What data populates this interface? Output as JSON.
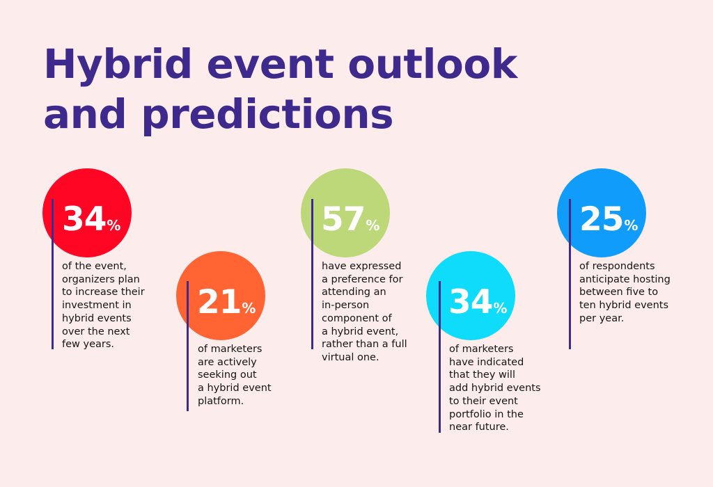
{
  "title": {
    "line1": "Hybrid event outlook",
    "line2": "and predictions"
  },
  "colors": {
    "background": "#fdecec",
    "title": "#3d2a8c",
    "divider": "#3d2a8c",
    "stat_1": "#fe0624",
    "stat_2": "#ff6432",
    "stat_3": "#bcd879",
    "stat_4": "#0edcfa",
    "stat_5": "#109cfa"
  },
  "stats": [
    {
      "value": "34",
      "unit": "%",
      "description": "of the event,\norganizers plan\nto increase their\ninvestment in\nhybrid events\nover the next\nfew years."
    },
    {
      "value": "21",
      "unit": "%",
      "description": "of marketers\nare actively\nseeking out\na hybrid event\nplatform."
    },
    {
      "value": "57",
      "unit": "%",
      "description": "have expressed\na preference for\nattending an\nin-person\ncomponent of\na hybrid event,\nrather than a full\nvirtual one."
    },
    {
      "value": "34",
      "unit": "%",
      "description": "of marketers\nhave indicated\nthat they will\nadd hybrid events\nto their event\nportfolio in the\nnear future."
    },
    {
      "value": "25",
      "unit": "%",
      "description": "of respondents\nanticipate hosting\nbetween five to\nten hybrid events\nper year."
    }
  ]
}
